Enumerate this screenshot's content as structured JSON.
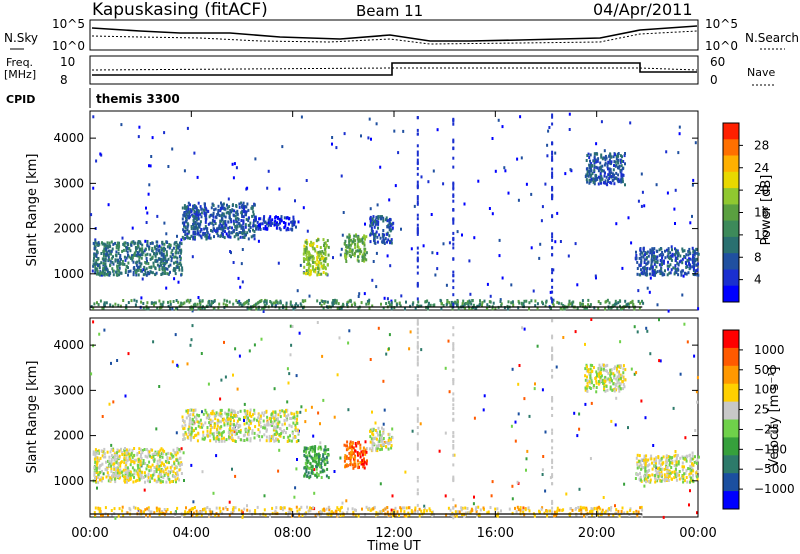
{
  "header": {
    "station": "Kapuskasing (fitACF)",
    "beam": "Beam 11",
    "date": "04/Apr/2011"
  },
  "top_panels": {
    "nsky_label": "N.Sky",
    "nsky_ticks": [
      "10^5",
      "10^0"
    ],
    "nsearch_label": "N.Search",
    "nsearch_ticks": [
      "10^5",
      "10^0"
    ],
    "freq_label": "Freq.",
    "freq_unit": "[MHz]",
    "freq_ticks": [
      "10",
      "8"
    ],
    "nave_label": "Nave",
    "nave_ticks": [
      "60",
      "0"
    ],
    "cpid_label": "CPID",
    "cpid_value": "themis 3300"
  },
  "chart_data": [
    {
      "type": "heatmap",
      "name": "power",
      "ylabel": "Slant Range [km]",
      "yticks": [
        1000,
        2000,
        3000,
        4000
      ],
      "ylim": [
        200,
        4600
      ],
      "xlim": [
        0,
        24
      ],
      "colorbar": {
        "label": "Power [dB]",
        "ticks": [
          "28",
          "24",
          "20",
          "16",
          "12",
          "8",
          "4"
        ],
        "colors": [
          "#0000ff",
          "#1a2fcf",
          "#2050a0",
          "#2a7070",
          "#3d8a5a",
          "#5aa040",
          "#90c830",
          "#e8d800",
          "#ffb000",
          "#ff7000",
          "#ff2000"
        ]
      },
      "regions": [
        {
          "x0": 0.1,
          "x1": 3.6,
          "y0": 1000,
          "y1": 1750,
          "level": 3
        },
        {
          "x0": 3.6,
          "x1": 6.5,
          "y0": 1800,
          "y1": 2600,
          "level": 2
        },
        {
          "x0": 6.5,
          "x1": 8.2,
          "y0": 2000,
          "y1": 2300,
          "level": 1
        },
        {
          "x0": 8.4,
          "x1": 9.4,
          "y0": 1000,
          "y1": 1800,
          "level": 6
        },
        {
          "x0": 10.0,
          "x1": 10.9,
          "y0": 1300,
          "y1": 1900,
          "level": 5
        },
        {
          "x0": 11.0,
          "x1": 11.9,
          "y0": 1700,
          "y1": 2300,
          "level": 2
        },
        {
          "x0": 19.5,
          "x1": 21.1,
          "y0": 3000,
          "y1": 3700,
          "level": 2
        },
        {
          "x0": 21.5,
          "x1": 24.0,
          "y0": 1000,
          "y1": 1600,
          "level": 2
        },
        {
          "x0": 0.0,
          "x1": 21.8,
          "y0": 250,
          "y1": 450,
          "level": 4
        }
      ]
    },
    {
      "type": "heatmap",
      "name": "velocity",
      "ylabel": "Slant Range [km]",
      "yticks": [
        1000,
        2000,
        3000,
        4000
      ],
      "ylim": [
        200,
        4600
      ],
      "xlim": [
        0,
        24
      ],
      "xticks": [
        "00:00",
        "04:00",
        "08:00",
        "12:00",
        "16:00",
        "20:00",
        "00:00"
      ],
      "xlabel": "Time UT",
      "colorbar": {
        "label": "Velocity [m s⁻¹]",
        "ticks": [
          "1000",
          "500",
          "100",
          "25",
          "−25",
          "−100",
          "−500",
          "−1000"
        ],
        "colors": [
          "#0000ff",
          "#1b4fa0",
          "#2d7a6a",
          "#36a03c",
          "#6fd14a",
          "#c8c8c8",
          "#ffd000",
          "#ff9800",
          "#ff5a00",
          "#ff0000"
        ]
      },
      "regions": [
        {
          "x0": 0.1,
          "x1": 3.6,
          "y0": 1000,
          "y1": 1750,
          "level": 5
        },
        {
          "x0": 3.6,
          "x1": 8.2,
          "y0": 1900,
          "y1": 2600,
          "level": 5
        },
        {
          "x0": 8.4,
          "x1": 9.4,
          "y0": 1100,
          "y1": 1800,
          "level": 3
        },
        {
          "x0": 10.0,
          "x1": 10.9,
          "y0": 1300,
          "y1": 1900,
          "level": 8
        },
        {
          "x0": 11.0,
          "x1": 11.9,
          "y0": 1700,
          "y1": 2200,
          "level": 5
        },
        {
          "x0": 19.5,
          "x1": 21.1,
          "y0": 3000,
          "y1": 3600,
          "level": 5
        },
        {
          "x0": 21.5,
          "x1": 24.0,
          "y0": 1000,
          "y1": 1600,
          "level": 5
        },
        {
          "x0": 0.0,
          "x1": 21.8,
          "y0": 250,
          "y1": 450,
          "level": 6
        }
      ]
    }
  ]
}
